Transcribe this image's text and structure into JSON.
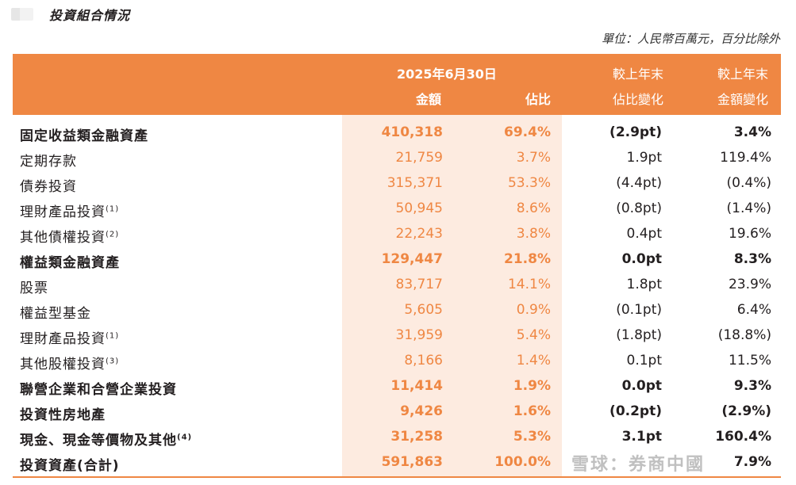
{
  "section_title": "投資組合情況",
  "unit_note": "單位：人民幣百萬元，百分比除外",
  "header": {
    "date": "2025年6月30日",
    "amount": "金額",
    "pct": "佔比",
    "ratio_change_1": "較上年末",
    "ratio_change_2": "佔比變化",
    "amount_change_1": "較上年末",
    "amount_change_2": "金額變化"
  },
  "rows": [
    {
      "label": "固定收益類金融資產",
      "note": "",
      "amount": "410,318",
      "pct": "69.4%",
      "ratio": "(2.9pt)",
      "amtchg": "3.4%",
      "bold": true
    },
    {
      "label": "定期存款",
      "note": "",
      "amount": "21,759",
      "pct": "3.7%",
      "ratio": "1.9pt",
      "amtchg": "119.4%",
      "bold": false
    },
    {
      "label": "債券投資",
      "note": "",
      "amount": "315,371",
      "pct": "53.3%",
      "ratio": "(4.4pt)",
      "amtchg": "(0.4%)",
      "bold": false
    },
    {
      "label": "理財產品投資",
      "note": "(1)",
      "amount": "50,945",
      "pct": "8.6%",
      "ratio": "(0.8pt)",
      "amtchg": "(1.4%)",
      "bold": false
    },
    {
      "label": "其他債權投資",
      "note": "(2)",
      "amount": "22,243",
      "pct": "3.8%",
      "ratio": "0.4pt",
      "amtchg": "19.6%",
      "bold": false
    },
    {
      "label": "權益類金融資產",
      "note": "",
      "amount": "129,447",
      "pct": "21.8%",
      "ratio": "0.0pt",
      "amtchg": "8.3%",
      "bold": true
    },
    {
      "label": "股票",
      "note": "",
      "amount": "83,717",
      "pct": "14.1%",
      "ratio": "1.8pt",
      "amtchg": "23.9%",
      "bold": false
    },
    {
      "label": "權益型基金",
      "note": "",
      "amount": "5,605",
      "pct": "0.9%",
      "ratio": "(0.1pt)",
      "amtchg": "6.4%",
      "bold": false
    },
    {
      "label": "理財產品投資",
      "note": "(1)",
      "amount": "31,959",
      "pct": "5.4%",
      "ratio": "(1.8pt)",
      "amtchg": "(18.8%)",
      "bold": false
    },
    {
      "label": "其他股權投資",
      "note": "(3)",
      "amount": "8,166",
      "pct": "1.4%",
      "ratio": "0.1pt",
      "amtchg": "11.5%",
      "bold": false
    },
    {
      "label": "聯營企業和合營企業投資",
      "note": "",
      "amount": "11,414",
      "pct": "1.9%",
      "ratio": "0.0pt",
      "amtchg": "9.3%",
      "bold": true
    },
    {
      "label": "投資性房地產",
      "note": "",
      "amount": "9,426",
      "pct": "1.6%",
      "ratio": "(0.2pt)",
      "amtchg": "(2.9%)",
      "bold": true
    },
    {
      "label": "現金、現金等價物及其他",
      "note": "(4)",
      "amount": "31,258",
      "pct": "5.3%",
      "ratio": "3.1pt",
      "amtchg": "160.4%",
      "bold": true
    },
    {
      "label": "投資資產(合計)",
      "note": "",
      "amount": "591,863",
      "pct": "100.0%",
      "ratio": "",
      "amtchg": "7.9%",
      "bold": true
    }
  ],
  "watermark": "雪球：券商中國",
  "colors": {
    "accent": "#ef8743",
    "shade": "#fdebe0"
  }
}
